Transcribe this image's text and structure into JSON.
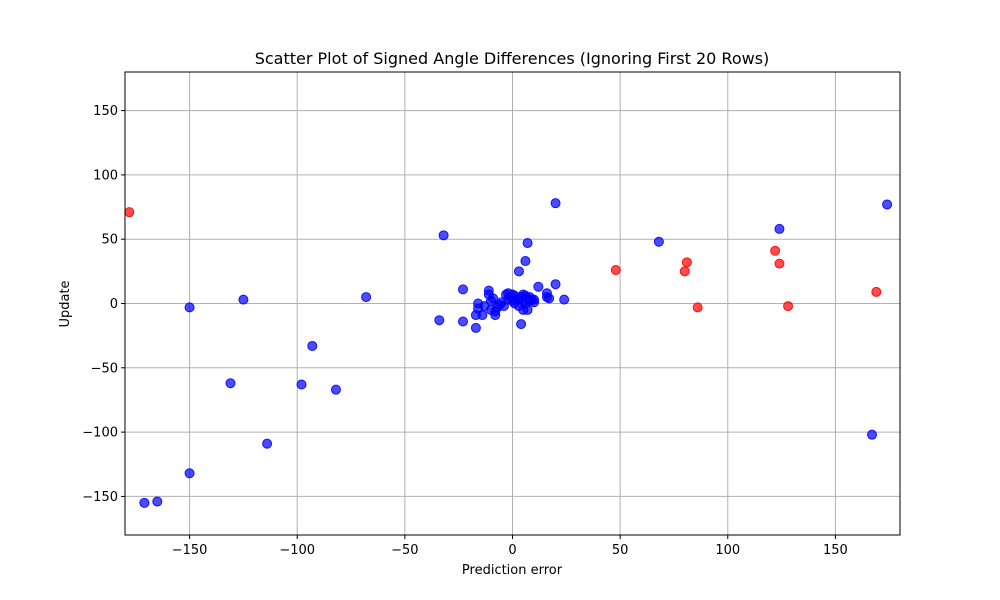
{
  "chart_data": {
    "type": "scatter",
    "title": "Scatter Plot of Signed Angle Differences (Ignoring First 20 Rows)",
    "xlabel": "Prediction error",
    "ylabel": "Update",
    "xlim": [
      -180,
      180
    ],
    "ylim": [
      -180,
      180
    ],
    "x_ticks": [
      -150,
      -100,
      -50,
      0,
      50,
      100,
      150
    ],
    "y_ticks": [
      -150,
      -100,
      -50,
      0,
      50,
      100,
      150
    ],
    "x_tick_labels": [
      "−150",
      "−100",
      "−50",
      "0",
      "50",
      "100",
      "150"
    ],
    "y_tick_labels": [
      "−150",
      "−100",
      "−50",
      "0",
      "50",
      "100",
      "150"
    ],
    "grid": true,
    "marker_alpha": 0.7,
    "series": [
      {
        "color": "#0000ff",
        "points": [
          [
            -171,
            -155
          ],
          [
            -165,
            -154
          ],
          [
            -150,
            -132
          ],
          [
            -150,
            -3
          ],
          [
            -131,
            -62
          ],
          [
            -125,
            3
          ],
          [
            -114,
            -109
          ],
          [
            -98,
            -63
          ],
          [
            -93,
            -33
          ],
          [
            -82,
            -67
          ],
          [
            -68,
            5
          ],
          [
            -34,
            -13
          ],
          [
            -32,
            53
          ],
          [
            -23,
            11
          ],
          [
            -23,
            -14
          ],
          [
            -17,
            -19
          ],
          [
            -17,
            -9
          ],
          [
            -16,
            -4
          ],
          [
            -16,
            0
          ],
          [
            -14,
            -9
          ],
          [
            -13,
            -2
          ],
          [
            -11,
            10
          ],
          [
            -11,
            7
          ],
          [
            -10,
            -5
          ],
          [
            -10,
            2
          ],
          [
            -9,
            4
          ],
          [
            -8,
            -6
          ],
          [
            -8,
            -9
          ],
          [
            -7,
            -3
          ],
          [
            -6,
            -1
          ],
          [
            -5,
            1
          ],
          [
            -4,
            -2
          ],
          [
            -3,
            7
          ],
          [
            -2,
            3
          ],
          [
            -2,
            8
          ],
          [
            -1,
            5
          ],
          [
            0,
            2
          ],
          [
            0,
            7
          ],
          [
            1,
            6
          ],
          [
            1,
            0
          ],
          [
            2,
            3
          ],
          [
            3,
            25
          ],
          [
            3,
            -2
          ],
          [
            4,
            -16
          ],
          [
            4,
            5
          ],
          [
            5,
            7
          ],
          [
            5,
            2
          ],
          [
            5,
            -5
          ],
          [
            6,
            33
          ],
          [
            6,
            6
          ],
          [
            6,
            0
          ],
          [
            7,
            -5
          ],
          [
            7,
            47
          ],
          [
            7,
            4
          ],
          [
            8,
            2
          ],
          [
            8,
            5
          ],
          [
            9,
            3
          ],
          [
            10,
            1
          ],
          [
            10,
            3
          ],
          [
            12,
            13
          ],
          [
            16,
            8
          ],
          [
            16,
            5
          ],
          [
            17,
            4
          ],
          [
            20,
            15
          ],
          [
            20,
            78
          ],
          [
            24,
            3
          ],
          [
            68,
            48
          ],
          [
            124,
            58
          ],
          [
            167,
            -102
          ],
          [
            174,
            77
          ]
        ]
      },
      {
        "color": "#ff0000",
        "points": [
          [
            -178,
            71
          ],
          [
            48,
            26
          ],
          [
            80,
            25
          ],
          [
            81,
            32
          ],
          [
            86,
            -3
          ],
          [
            122,
            41
          ],
          [
            124,
            31
          ],
          [
            128,
            -2
          ],
          [
            169,
            9
          ]
        ]
      }
    ]
  }
}
